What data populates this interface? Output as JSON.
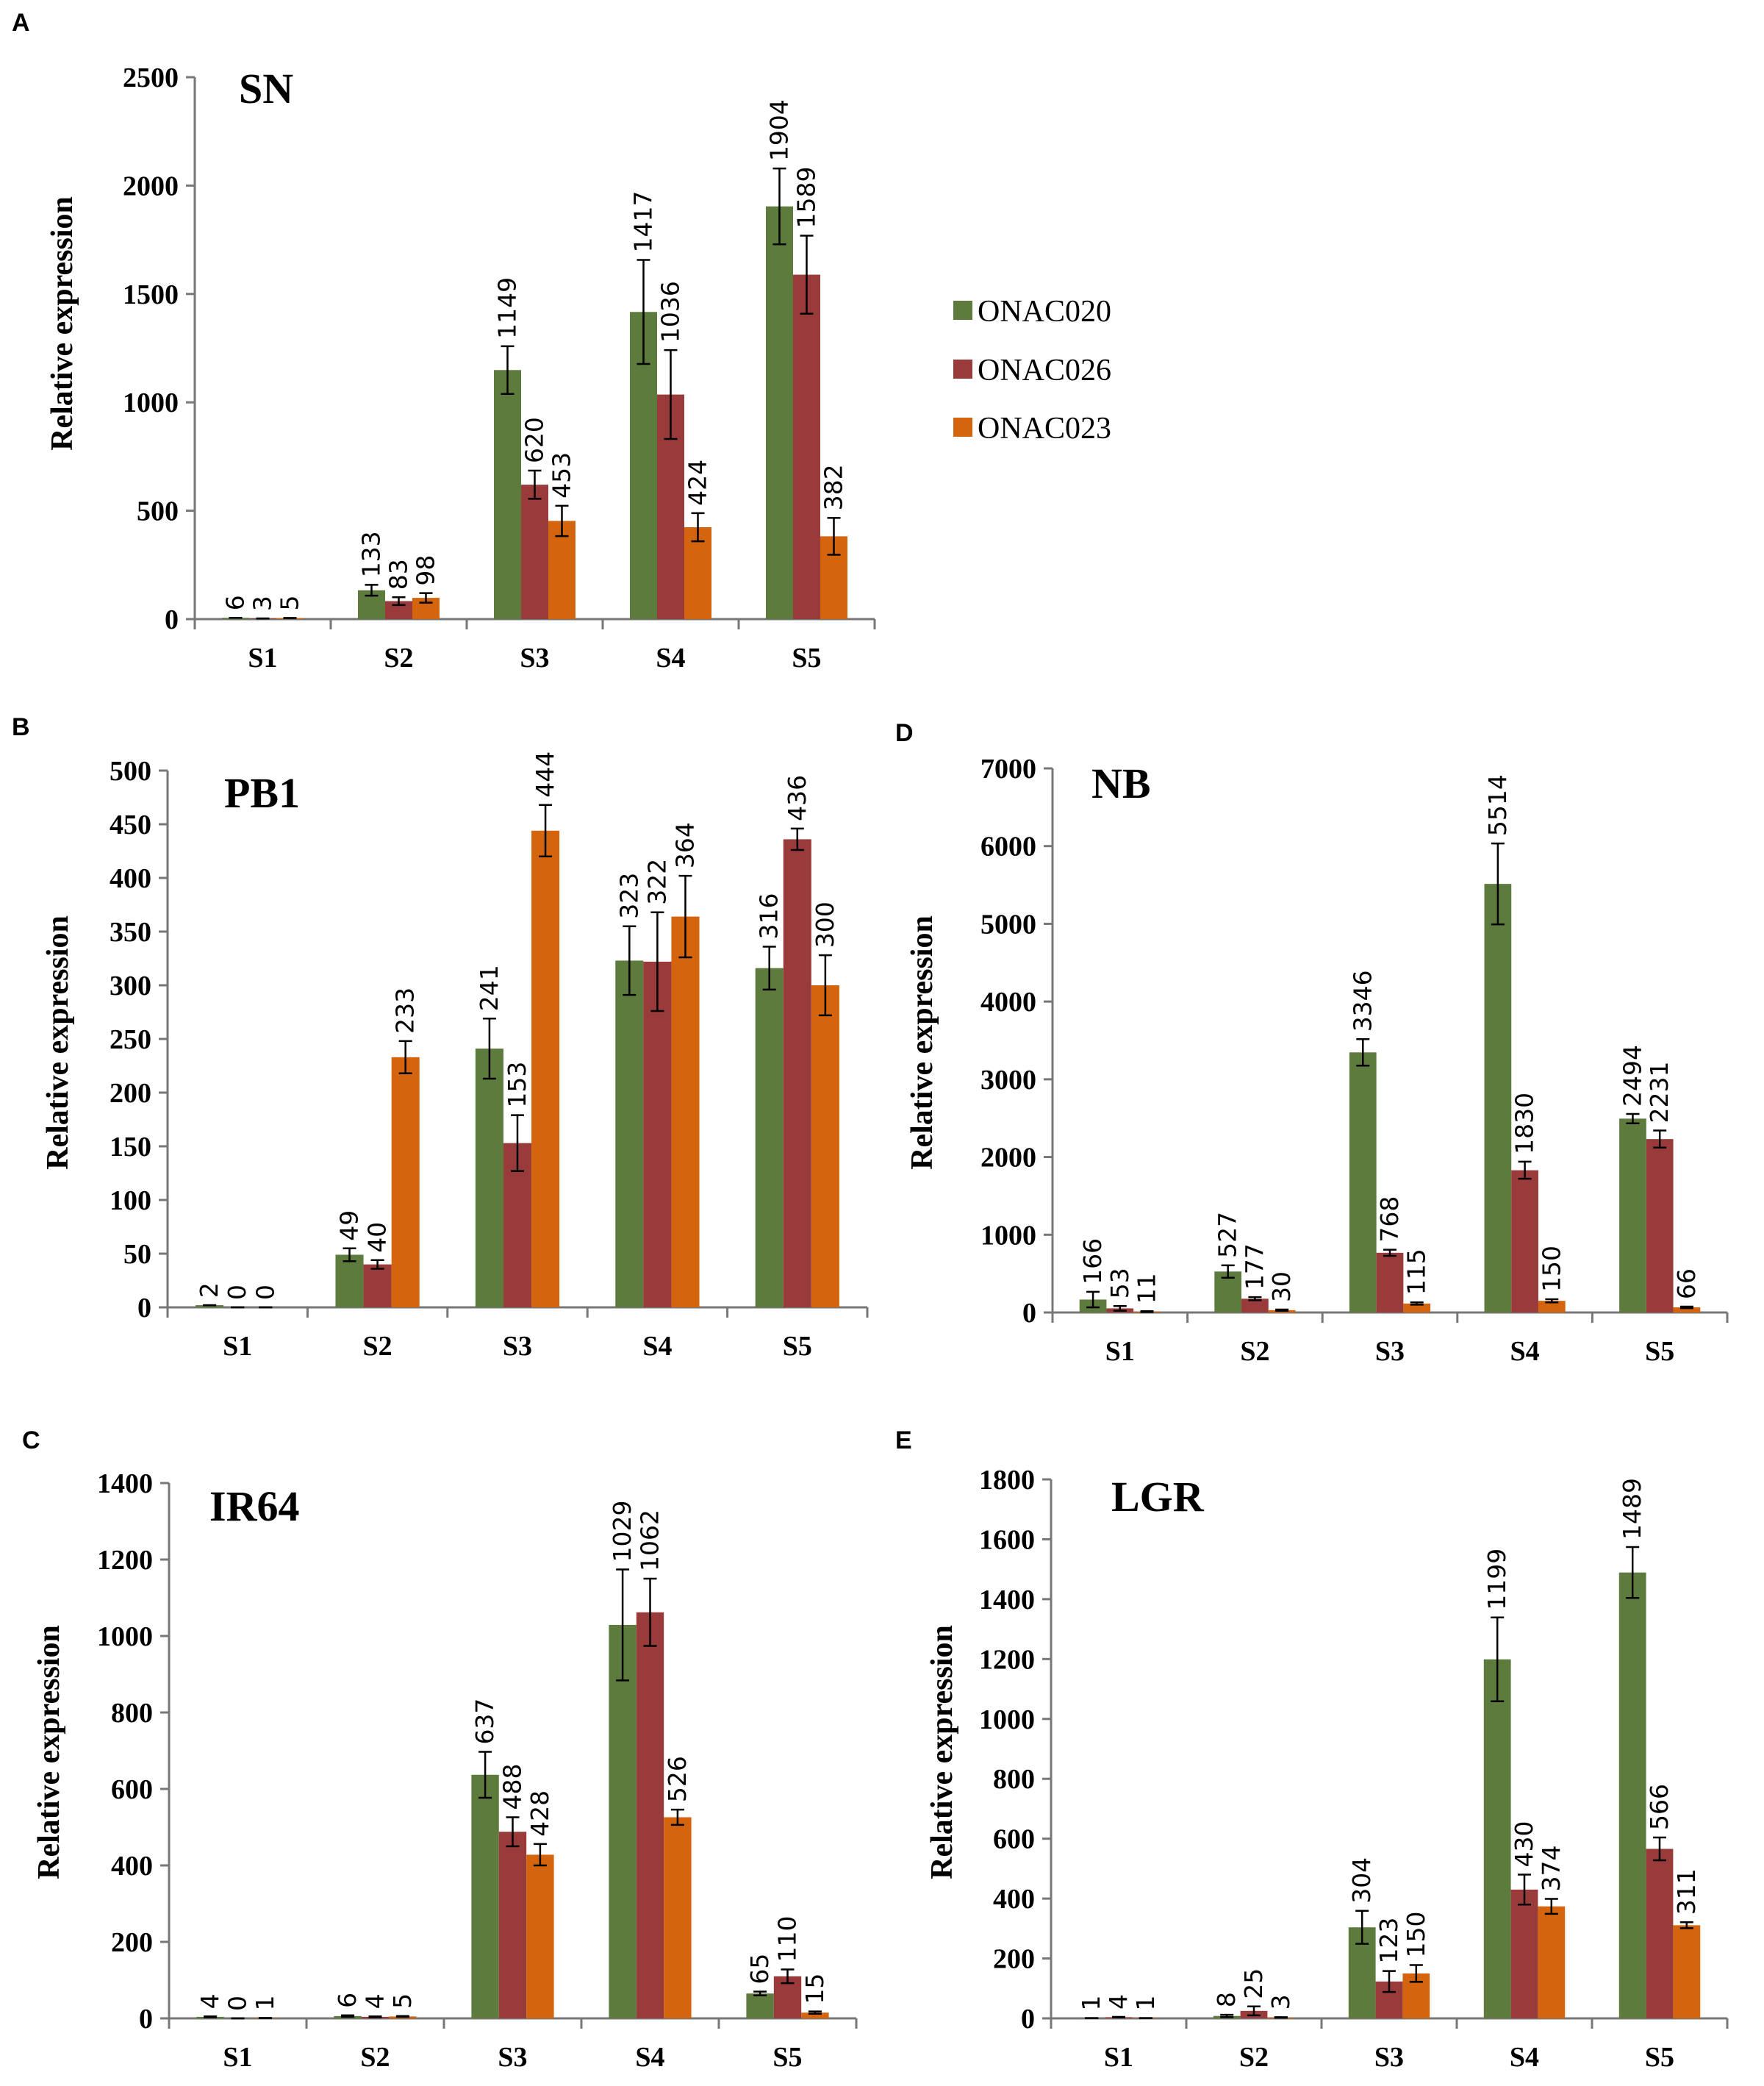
{
  "colors": {
    "ONAC020": "#5e7b3e",
    "ONAC026": "#9a3b3b",
    "ONAC023": "#d4650e"
  },
  "legend": {
    "items": [
      "ONAC020",
      "ONAC026",
      "ONAC023"
    ]
  },
  "chart_data": [
    {
      "id": "A",
      "letter": "A",
      "type": "bar",
      "title": "SN",
      "ylabel": "Relative expression",
      "ylim": [
        0,
        2500
      ],
      "yticks": [
        0,
        500,
        1000,
        1500,
        2000,
        2500
      ],
      "categories": [
        "S1",
        "S2",
        "S3",
        "S4",
        "S5"
      ],
      "series": [
        {
          "name": "ONAC020",
          "values": [
            6,
            133,
            1149,
            1417,
            1904
          ],
          "errors": [
            0,
            25,
            110,
            240,
            175
          ]
        },
        {
          "name": "ONAC026",
          "values": [
            3,
            83,
            620,
            1036,
            1589
          ],
          "errors": [
            0,
            18,
            65,
            205,
            180
          ]
        },
        {
          "name": "ONAC023",
          "values": [
            5,
            98,
            453,
            424,
            382
          ],
          "errors": [
            0,
            22,
            70,
            65,
            85
          ]
        }
      ]
    },
    {
      "id": "B",
      "letter": "B",
      "type": "bar",
      "title": "PB1",
      "ylabel": "Relative expression",
      "ylim": [
        0,
        500
      ],
      "yticks": [
        0,
        50,
        100,
        150,
        200,
        250,
        300,
        350,
        400,
        450,
        500
      ],
      "categories": [
        "S1",
        "S2",
        "S3",
        "S4",
        "S5"
      ],
      "series": [
        {
          "name": "ONAC020",
          "values": [
            2,
            49,
            241,
            323,
            316
          ],
          "errors": [
            0,
            6,
            28,
            32,
            20
          ]
        },
        {
          "name": "ONAC026",
          "values": [
            0,
            40,
            153,
            322,
            436
          ],
          "errors": [
            0,
            4,
            26,
            46,
            10
          ]
        },
        {
          "name": "ONAC023",
          "values": [
            0,
            233,
            444,
            364,
            300
          ],
          "errors": [
            0,
            15,
            24,
            38,
            28
          ]
        }
      ]
    },
    {
      "id": "D",
      "letter": "D",
      "type": "bar",
      "title": "NB",
      "ylabel": "Relative expression",
      "ylim": [
        0,
        7000
      ],
      "yticks": [
        0,
        1000,
        2000,
        3000,
        4000,
        5000,
        6000,
        7000
      ],
      "categories": [
        "S1",
        "S2",
        "S3",
        "S4",
        "S5"
      ],
      "series": [
        {
          "name": "ONAC020",
          "values": [
            166,
            527,
            3346,
            5514,
            2494
          ],
          "errors": [
            100,
            80,
            170,
            520,
            60
          ]
        },
        {
          "name": "ONAC026",
          "values": [
            53,
            177,
            768,
            1830,
            2231
          ],
          "errors": [
            30,
            20,
            40,
            110,
            110
          ]
        },
        {
          "name": "ONAC023",
          "values": [
            11,
            30,
            115,
            150,
            66
          ],
          "errors": [
            5,
            8,
            15,
            20,
            10
          ]
        }
      ]
    },
    {
      "id": "C",
      "letter": "C",
      "type": "bar",
      "title": "IR64",
      "ylabel": "Relative expression",
      "ylim": [
        0,
        1400
      ],
      "yticks": [
        0,
        200,
        400,
        600,
        800,
        1000,
        1200,
        1400
      ],
      "categories": [
        "S1",
        "S2",
        "S3",
        "S4",
        "S5"
      ],
      "series": [
        {
          "name": "ONAC020",
          "values": [
            4,
            6,
            637,
            1029,
            65
          ],
          "errors": [
            1,
            2,
            60,
            145,
            5
          ]
        },
        {
          "name": "ONAC026",
          "values": [
            0,
            4,
            488,
            1062,
            110
          ],
          "errors": [
            0,
            1,
            38,
            88,
            18
          ]
        },
        {
          "name": "ONAC023",
          "values": [
            1,
            5,
            428,
            526,
            15
          ],
          "errors": [
            0,
            1,
            28,
            20,
            3
          ]
        }
      ]
    },
    {
      "id": "E",
      "letter": "E",
      "type": "bar",
      "title": "LGR",
      "ylabel": "Relative expression",
      "ylim": [
        0,
        1800
      ],
      "yticks": [
        0,
        200,
        400,
        600,
        800,
        1000,
        1200,
        1400,
        1600,
        1800
      ],
      "categories": [
        "S1",
        "S2",
        "S3",
        "S4",
        "S5"
      ],
      "series": [
        {
          "name": "ONAC020",
          "values": [
            1,
            8,
            304,
            1199,
            1489
          ],
          "errors": [
            0,
            4,
            55,
            140,
            85
          ]
        },
        {
          "name": "ONAC026",
          "values": [
            4,
            25,
            123,
            430,
            566
          ],
          "errors": [
            1,
            15,
            35,
            50,
            38
          ]
        },
        {
          "name": "ONAC023",
          "values": [
            1,
            3,
            150,
            374,
            311
          ],
          "errors": [
            0,
            1,
            28,
            25,
            10
          ]
        }
      ]
    }
  ]
}
